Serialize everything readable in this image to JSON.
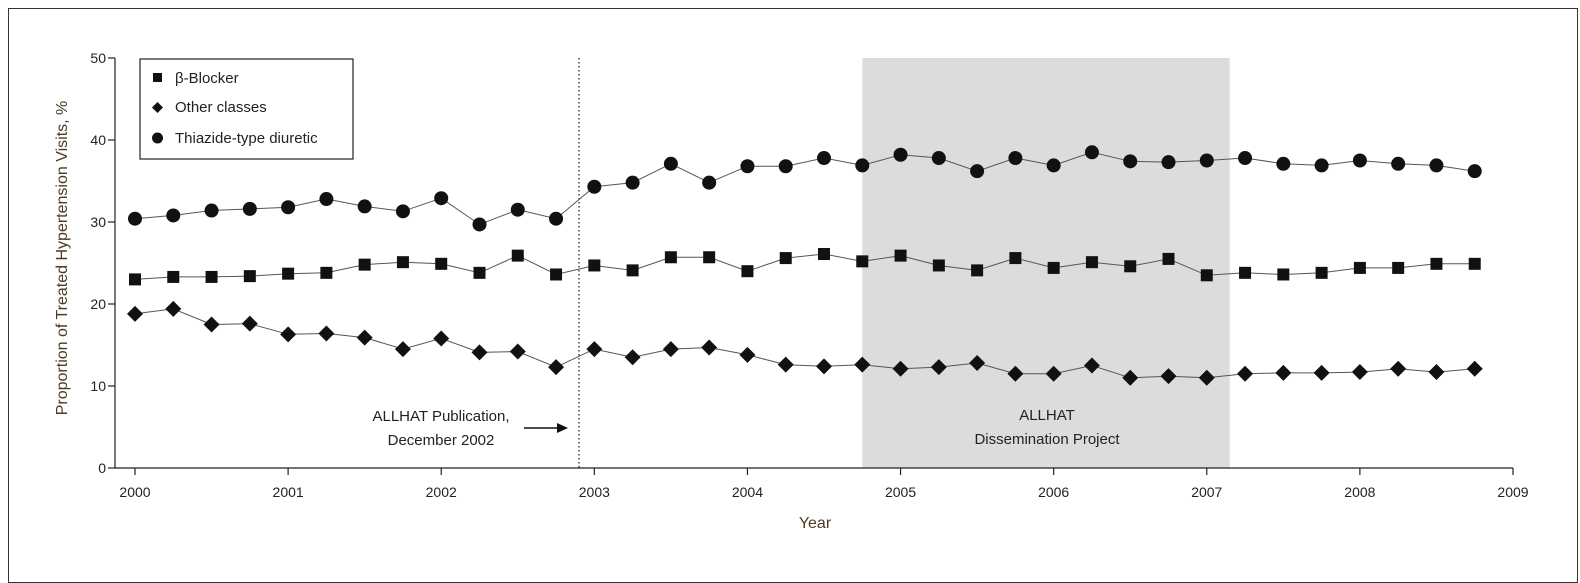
{
  "chart_data": {
    "type": "line",
    "xlabel": "Year",
    "ylabel": "Proportion of Treated Hypertension Visits, %",
    "xlim": [
      2000,
      2009
    ],
    "ylim": [
      0,
      50
    ],
    "x_ticks": [
      "2000",
      "2001",
      "2002",
      "2003",
      "2004",
      "2005",
      "2006",
      "2007",
      "2008",
      "2009"
    ],
    "y_ticks": [
      "0",
      "10",
      "20",
      "30",
      "40",
      "50"
    ],
    "legend_position": "top-left",
    "grid": false,
    "x": [
      2000.0,
      2000.25,
      2000.5,
      2000.75,
      2001.0,
      2001.25,
      2001.5,
      2001.75,
      2002.0,
      2002.25,
      2002.5,
      2002.75,
      2003.0,
      2003.25,
      2003.5,
      2003.75,
      2004.0,
      2004.25,
      2004.5,
      2004.75,
      2005.0,
      2005.25,
      2005.5,
      2005.75,
      2006.0,
      2006.25,
      2006.5,
      2006.75,
      2007.0,
      2007.25,
      2007.5,
      2007.75,
      2008.0,
      2008.25,
      2008.5,
      2008.75
    ],
    "series": [
      {
        "name": "β-Blocker",
        "marker": "square",
        "values": [
          23.0,
          23.3,
          23.3,
          23.4,
          23.7,
          23.8,
          24.8,
          25.1,
          24.9,
          23.8,
          25.9,
          23.6,
          24.7,
          24.1,
          25.7,
          25.7,
          24.0,
          25.6,
          26.1,
          25.2,
          25.9,
          24.7,
          24.1,
          25.6,
          24.4,
          25.1,
          24.6,
          25.5,
          23.5,
          23.8,
          23.6,
          23.8,
          24.4,
          24.4,
          24.9,
          24.9
        ],
        "color": "#111111"
      },
      {
        "name": "Other classes",
        "marker": "diamond",
        "values": [
          18.8,
          19.4,
          17.5,
          17.6,
          16.3,
          16.4,
          15.9,
          14.5,
          15.8,
          14.1,
          14.2,
          12.3,
          14.5,
          13.5,
          14.5,
          14.7,
          13.8,
          12.6,
          12.4,
          12.6,
          12.1,
          12.3,
          12.8,
          11.5,
          11.5,
          12.5,
          11.0,
          11.2,
          11.0,
          11.5,
          11.6,
          11.6,
          11.7,
          12.1,
          11.7,
          12.1
        ],
        "color": "#111111"
      },
      {
        "name": "Thiazide-type diuretic",
        "marker": "circle",
        "values": [
          30.4,
          30.8,
          31.4,
          31.6,
          31.8,
          32.8,
          31.9,
          31.3,
          32.9,
          29.7,
          31.5,
          30.4,
          34.3,
          34.8,
          37.1,
          34.8,
          36.8,
          36.8,
          37.8,
          36.9,
          38.2,
          37.8,
          36.2,
          37.8,
          36.9,
          38.5,
          37.4,
          37.3,
          37.5,
          37.8,
          37.1,
          36.9,
          37.5,
          37.1,
          36.9,
          36.2
        ],
        "color": "#111111"
      }
    ],
    "annotations": {
      "publication": {
        "line1": "ALLHAT Publication,",
        "line2": "December 2002",
        "x": 2002.9
      },
      "dissemination": {
        "line1": "ALLHAT",
        "line2": "Dissemination Project",
        "x_start": 2004.75,
        "x_end": 2007.15
      }
    },
    "colors": {
      "shade": "#dcdcdc",
      "marker": "#111111",
      "line": "#555555"
    }
  }
}
